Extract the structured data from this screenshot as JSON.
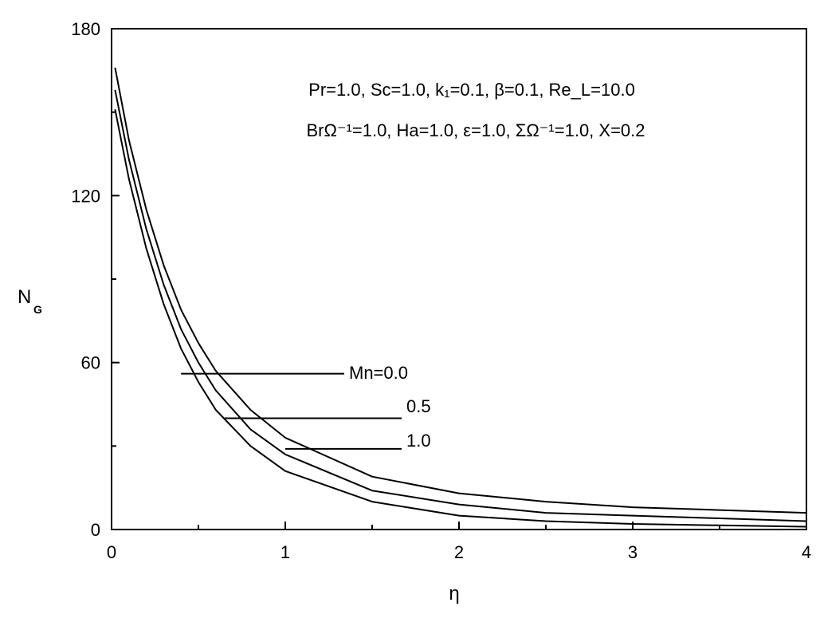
{
  "chart_data": {
    "type": "line",
    "xlabel": "η",
    "ylabel": "N",
    "ylabel_subscript": "G",
    "xlim": [
      0,
      4
    ],
    "ylim": [
      0,
      180
    ],
    "x_ticks": [
      "0",
      "1",
      "2",
      "3",
      "4"
    ],
    "y_ticks": [
      "0",
      "60",
      "120",
      "180"
    ],
    "grid": false,
    "annotation": {
      "line1": "Pr=1.0, Sc=1.0, k₁=0.1, β=0.1, Re_L=10.0",
      "line2": "BrΩ⁻¹=1.0, Ha=1.0, ε=1.0, ΣΩ⁻¹=1.0, X=0.2"
    },
    "series": [
      {
        "name": "Mn=0.0",
        "x": [
          0.02,
          0.1,
          0.2,
          0.3,
          0.4,
          0.5,
          0.6,
          0.8,
          1.0,
          1.5,
          2.0,
          2.5,
          3.0,
          3.5,
          4.0
        ],
        "y": [
          166,
          140,
          115,
          95,
          79,
          67,
          57,
          43,
          33,
          19,
          13,
          10,
          8,
          7,
          6
        ]
      },
      {
        "name": "0.5",
        "x": [
          0.02,
          0.1,
          0.2,
          0.3,
          0.4,
          0.5,
          0.6,
          0.8,
          1.0,
          1.5,
          2.0,
          2.5,
          3.0,
          3.5,
          4.0
        ],
        "y": [
          158,
          133,
          108,
          88,
          72,
          60,
          50,
          36,
          27,
          14,
          9,
          6,
          5,
          4,
          3
        ]
      },
      {
        "name": "1.0",
        "x": [
          0.02,
          0.1,
          0.2,
          0.3,
          0.4,
          0.5,
          0.6,
          0.8,
          1.0,
          1.5,
          2.0,
          2.5,
          3.0,
          3.5,
          4.0
        ],
        "y": [
          151,
          126,
          101,
          81,
          65,
          53,
          43,
          30,
          21,
          10,
          5,
          3,
          2,
          1.5,
          1
        ]
      }
    ],
    "legend_labels": [
      "Mn=0.0",
      "0.5",
      "1.0"
    ]
  }
}
